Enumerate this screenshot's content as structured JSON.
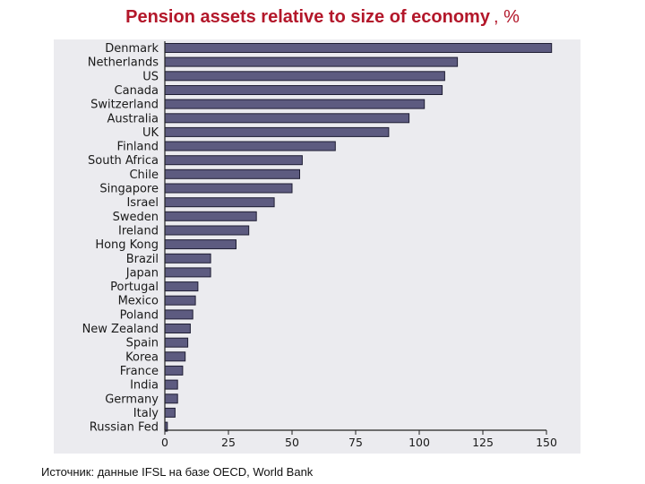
{
  "page": {
    "title": "Pension assets relative to size of economy",
    "title_unit": ", %",
    "source": "Источник: данные IFSL на базе OECD, World Bank"
  },
  "colors": {
    "title": "#b3172a",
    "bar_fill": "#5d5b80",
    "bar_stroke": "#1e1d33",
    "panel_bg": "#ebebef",
    "axis": "#222222"
  },
  "chart_data": {
    "type": "bar",
    "orientation": "horizontal",
    "categories": [
      "Denmark",
      "Netherlands",
      "US",
      "Canada",
      "Switzerland",
      "Australia",
      "UK",
      "Finland",
      "South Africa",
      "Chile",
      "Singapore",
      "Israel",
      "Sweden",
      "Ireland",
      "Hong Kong",
      "Brazil",
      "Japan",
      "Portugal",
      "Mexico",
      "Poland",
      "New Zealand",
      "Spain",
      "Korea",
      "France",
      "India",
      "Germany",
      "Italy",
      "Russian Fed"
    ],
    "values": [
      152,
      115,
      110,
      109,
      102,
      96,
      88,
      67,
      54,
      53,
      50,
      43,
      36,
      33,
      28,
      18,
      18,
      13,
      12,
      11,
      10,
      9,
      8,
      7,
      5,
      5,
      4,
      1
    ],
    "xlim": [
      0,
      150
    ],
    "xticks": [
      0,
      25,
      50,
      75,
      100,
      125,
      150
    ],
    "grid": false,
    "legend": "none"
  }
}
